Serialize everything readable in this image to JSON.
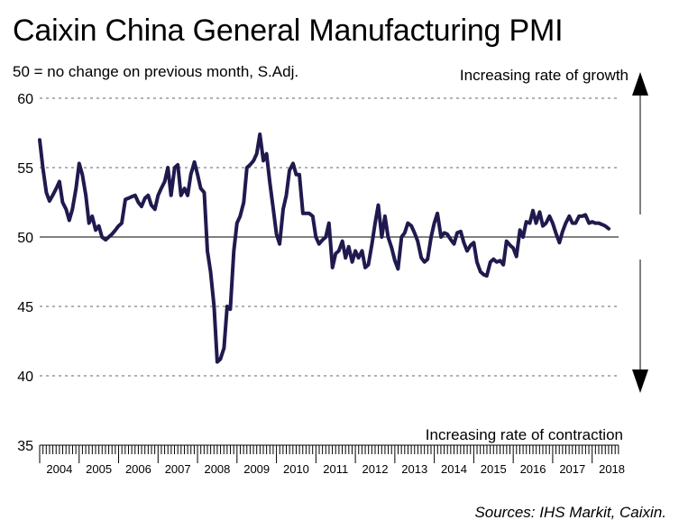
{
  "title": "Caixin China General Manufacturing PMI",
  "subtitle": "50 = no change on previous month, S.Adj.",
  "annotations": {
    "growth": "Increasing rate of growth",
    "contraction": "Increasing rate of contraction"
  },
  "source": "Sources: IHS Markit, Caixin.",
  "colors": {
    "line": "#1f1a4e",
    "grid": "#666666",
    "axis": "#000000"
  },
  "chart_data": {
    "type": "line",
    "ylim": [
      35,
      60
    ],
    "yticks": [
      35,
      40,
      45,
      50,
      55,
      60
    ],
    "grid": "dashed horizontal",
    "reference_line": 50,
    "x_range": [
      2004.0,
      2018.67
    ],
    "year_labels": [
      "2004",
      "2005",
      "2006",
      "2007",
      "2008",
      "2009",
      "2010",
      "2011",
      "2012",
      "2013",
      "2014",
      "2015",
      "2016",
      "2017",
      "2018"
    ],
    "series": [
      {
        "points": [
          [
            2004.0,
            57.0
          ],
          [
            2004.08,
            55.0
          ],
          [
            2004.17,
            53.2
          ],
          [
            2004.25,
            52.6
          ],
          [
            2004.33,
            53.0
          ],
          [
            2004.42,
            53.5
          ],
          [
            2004.5,
            54.0
          ],
          [
            2004.58,
            52.5
          ],
          [
            2004.67,
            52.0
          ],
          [
            2004.75,
            51.2
          ],
          [
            2004.83,
            52.0
          ],
          [
            2004.92,
            53.5
          ],
          [
            2005.0,
            55.3
          ],
          [
            2005.08,
            54.5
          ],
          [
            2005.17,
            53.0
          ],
          [
            2005.25,
            51.0
          ],
          [
            2005.33,
            51.5
          ],
          [
            2005.42,
            50.5
          ],
          [
            2005.5,
            50.8
          ],
          [
            2005.58,
            50.0
          ],
          [
            2005.67,
            49.8
          ],
          [
            2005.75,
            50.0
          ],
          [
            2005.83,
            50.2
          ],
          [
            2005.92,
            50.5
          ],
          [
            2006.0,
            50.8
          ],
          [
            2006.08,
            51.0
          ],
          [
            2006.17,
            52.7
          ],
          [
            2006.25,
            52.8
          ],
          [
            2006.33,
            52.9
          ],
          [
            2006.42,
            53.0
          ],
          [
            2006.5,
            52.5
          ],
          [
            2006.58,
            52.2
          ],
          [
            2006.67,
            52.8
          ],
          [
            2006.75,
            53.0
          ],
          [
            2006.83,
            52.3
          ],
          [
            2006.92,
            52.0
          ],
          [
            2007.0,
            53.0
          ],
          [
            2007.08,
            53.5
          ],
          [
            2007.17,
            54.0
          ],
          [
            2007.25,
            55.0
          ],
          [
            2007.33,
            53.0
          ],
          [
            2007.42,
            55.0
          ],
          [
            2007.5,
            55.2
          ],
          [
            2007.58,
            53.0
          ],
          [
            2007.67,
            53.5
          ],
          [
            2007.75,
            53.0
          ],
          [
            2007.83,
            54.5
          ],
          [
            2007.92,
            55.4
          ],
          [
            2008.0,
            54.5
          ],
          [
            2008.08,
            53.5
          ],
          [
            2008.17,
            53.2
          ],
          [
            2008.25,
            49.0
          ],
          [
            2008.33,
            47.5
          ],
          [
            2008.42,
            45.0
          ],
          [
            2008.5,
            41.0
          ],
          [
            2008.58,
            41.2
          ],
          [
            2008.67,
            42.0
          ],
          [
            2008.75,
            45.0
          ],
          [
            2008.83,
            44.8
          ],
          [
            2008.92,
            49.0
          ],
          [
            2009.0,
            51.0
          ],
          [
            2009.08,
            51.5
          ],
          [
            2009.17,
            52.5
          ],
          [
            2009.25,
            55.0
          ],
          [
            2009.33,
            55.2
          ],
          [
            2009.42,
            55.5
          ],
          [
            2009.5,
            56.0
          ],
          [
            2009.58,
            57.4
          ],
          [
            2009.67,
            55.5
          ],
          [
            2009.75,
            56.0
          ],
          [
            2009.83,
            54.0
          ],
          [
            2009.92,
            52.0
          ],
          [
            2010.0,
            50.2
          ],
          [
            2010.08,
            49.5
          ],
          [
            2010.17,
            52.0
          ],
          [
            2010.25,
            53.0
          ],
          [
            2010.33,
            54.8
          ],
          [
            2010.42,
            55.3
          ],
          [
            2010.5,
            54.5
          ],
          [
            2010.58,
            54.5
          ],
          [
            2010.67,
            51.7
          ],
          [
            2010.75,
            51.7
          ],
          [
            2010.83,
            51.7
          ],
          [
            2010.92,
            51.5
          ],
          [
            2011.0,
            50.0
          ],
          [
            2011.08,
            49.5
          ],
          [
            2011.17,
            49.8
          ],
          [
            2011.25,
            50.0
          ],
          [
            2011.33,
            51.0
          ],
          [
            2011.42,
            47.8
          ],
          [
            2011.5,
            48.8
          ],
          [
            2011.58,
            49.0
          ],
          [
            2011.67,
            49.7
          ],
          [
            2011.75,
            48.5
          ],
          [
            2011.83,
            49.3
          ],
          [
            2011.92,
            48.2
          ],
          [
            2012.0,
            49.0
          ],
          [
            2012.08,
            48.5
          ],
          [
            2012.17,
            49.0
          ],
          [
            2012.25,
            47.8
          ],
          [
            2012.33,
            48.0
          ],
          [
            2012.42,
            49.5
          ],
          [
            2012.5,
            51.0
          ],
          [
            2012.58,
            52.3
          ],
          [
            2012.67,
            50.0
          ],
          [
            2012.75,
            51.5
          ],
          [
            2012.83,
            50.0
          ],
          [
            2012.92,
            49.2
          ],
          [
            2013.0,
            48.3
          ],
          [
            2013.08,
            47.7
          ],
          [
            2013.17,
            50.0
          ],
          [
            2013.25,
            50.3
          ],
          [
            2013.33,
            51.0
          ],
          [
            2013.42,
            50.8
          ],
          [
            2013.5,
            50.3
          ],
          [
            2013.58,
            49.7
          ],
          [
            2013.67,
            48.5
          ],
          [
            2013.75,
            48.2
          ],
          [
            2013.83,
            48.4
          ],
          [
            2013.92,
            50.0
          ],
          [
            2014.0,
            51.0
          ],
          [
            2014.08,
            51.7
          ],
          [
            2014.17,
            50.0
          ],
          [
            2014.25,
            50.3
          ],
          [
            2014.33,
            50.2
          ],
          [
            2014.42,
            49.8
          ],
          [
            2014.5,
            49.5
          ],
          [
            2014.58,
            50.3
          ],
          [
            2014.67,
            50.4
          ],
          [
            2014.75,
            49.6
          ],
          [
            2014.83,
            49.0
          ],
          [
            2014.92,
            49.4
          ],
          [
            2015.0,
            49.6
          ],
          [
            2015.08,
            48.2
          ],
          [
            2015.17,
            47.5
          ],
          [
            2015.25,
            47.3
          ],
          [
            2015.33,
            47.2
          ],
          [
            2015.42,
            48.2
          ],
          [
            2015.5,
            48.4
          ],
          [
            2015.58,
            48.2
          ],
          [
            2015.67,
            48.3
          ],
          [
            2015.75,
            48.0
          ],
          [
            2015.83,
            49.7
          ],
          [
            2015.92,
            49.4
          ],
          [
            2016.0,
            49.2
          ],
          [
            2016.08,
            48.6
          ],
          [
            2016.17,
            50.5
          ],
          [
            2016.25,
            50.0
          ],
          [
            2016.33,
            51.1
          ],
          [
            2016.42,
            51.0
          ],
          [
            2016.5,
            51.9
          ],
          [
            2016.58,
            51.0
          ],
          [
            2016.67,
            51.8
          ],
          [
            2016.75,
            50.8
          ],
          [
            2016.83,
            51.0
          ],
          [
            2016.92,
            51.5
          ],
          [
            2017.0,
            51.0
          ],
          [
            2017.08,
            50.3
          ],
          [
            2017.17,
            49.6
          ],
          [
            2017.25,
            50.4
          ],
          [
            2017.33,
            51.0
          ],
          [
            2017.42,
            51.5
          ],
          [
            2017.5,
            51.0
          ],
          [
            2017.58,
            51.0
          ],
          [
            2017.67,
            51.5
          ],
          [
            2017.75,
            51.5
          ],
          [
            2017.83,
            51.6
          ],
          [
            2017.92,
            51.0
          ],
          [
            2018.0,
            51.1
          ],
          [
            2018.08,
            51.0
          ],
          [
            2018.17,
            51.0
          ],
          [
            2018.25,
            50.9
          ],
          [
            2018.33,
            50.8
          ],
          [
            2018.42,
            50.6
          ]
        ]
      }
    ]
  }
}
